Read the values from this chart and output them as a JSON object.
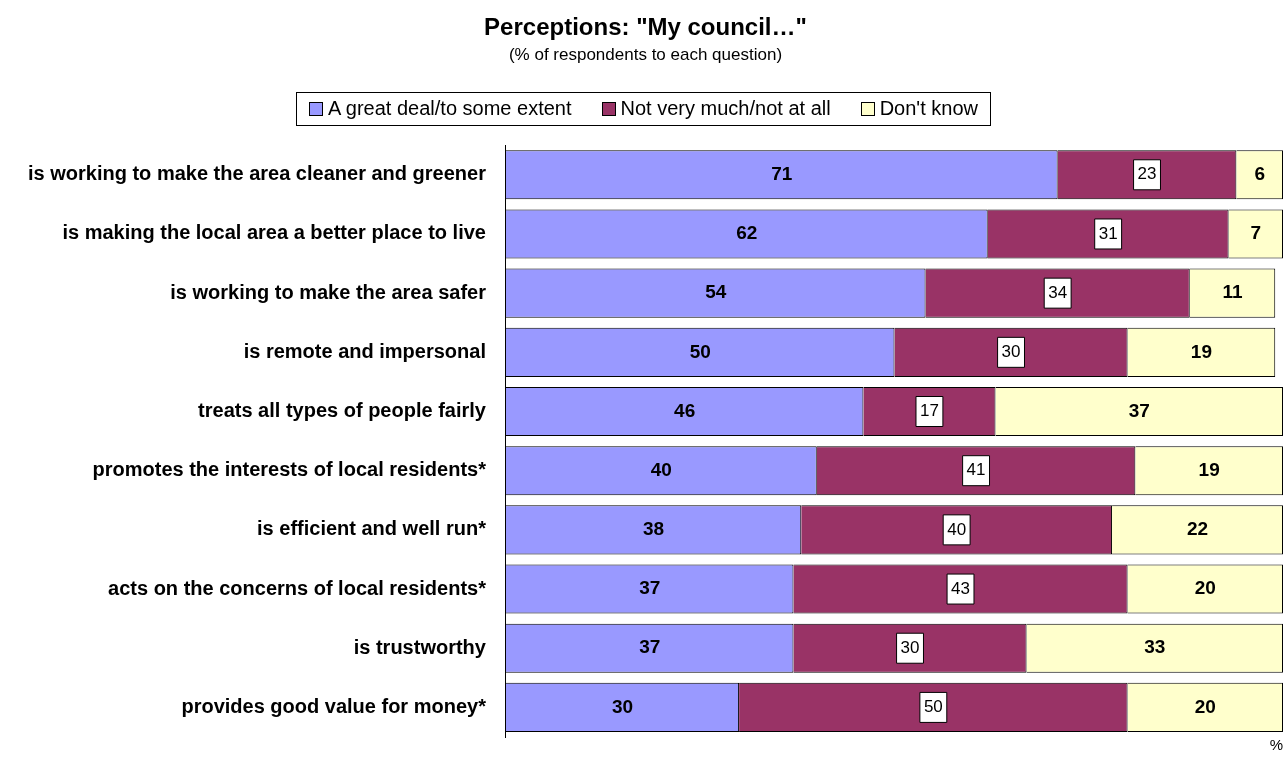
{
  "chart_data": {
    "type": "bar",
    "orientation": "horizontal",
    "stacked": true,
    "title": "Perceptions: \"My council…\"",
    "subtitle": "(% of respondents to each question)",
    "xlabel": "%",
    "categories": [
      "is working to make the area cleaner and greener",
      "is making the local area a better place to live",
      "is working to make the area safer",
      "is remote and impersonal",
      "treats all types of people fairly",
      "promotes the interests of local residents*",
      "is efficient and well run*",
      "acts on the concerns of local residents*",
      "is trustworthy",
      "provides good value for money*"
    ],
    "series": [
      {
        "name": "A great deal/to some extent",
        "color": "#9999ff",
        "values": [
          71,
          62,
          54,
          50,
          46,
          40,
          38,
          37,
          37,
          30
        ]
      },
      {
        "name": "Not very much/not at all",
        "color": "#993366",
        "values": [
          23,
          31,
          34,
          30,
          17,
          41,
          40,
          43,
          30,
          50
        ]
      },
      {
        "name": "Don't know",
        "color": "#ffffcc",
        "values": [
          6,
          7,
          11,
          19,
          37,
          19,
          22,
          20,
          33,
          20
        ]
      }
    ],
    "xlim": [
      0,
      100
    ],
    "data_labels": true,
    "legend": "top",
    "grid": false
  }
}
